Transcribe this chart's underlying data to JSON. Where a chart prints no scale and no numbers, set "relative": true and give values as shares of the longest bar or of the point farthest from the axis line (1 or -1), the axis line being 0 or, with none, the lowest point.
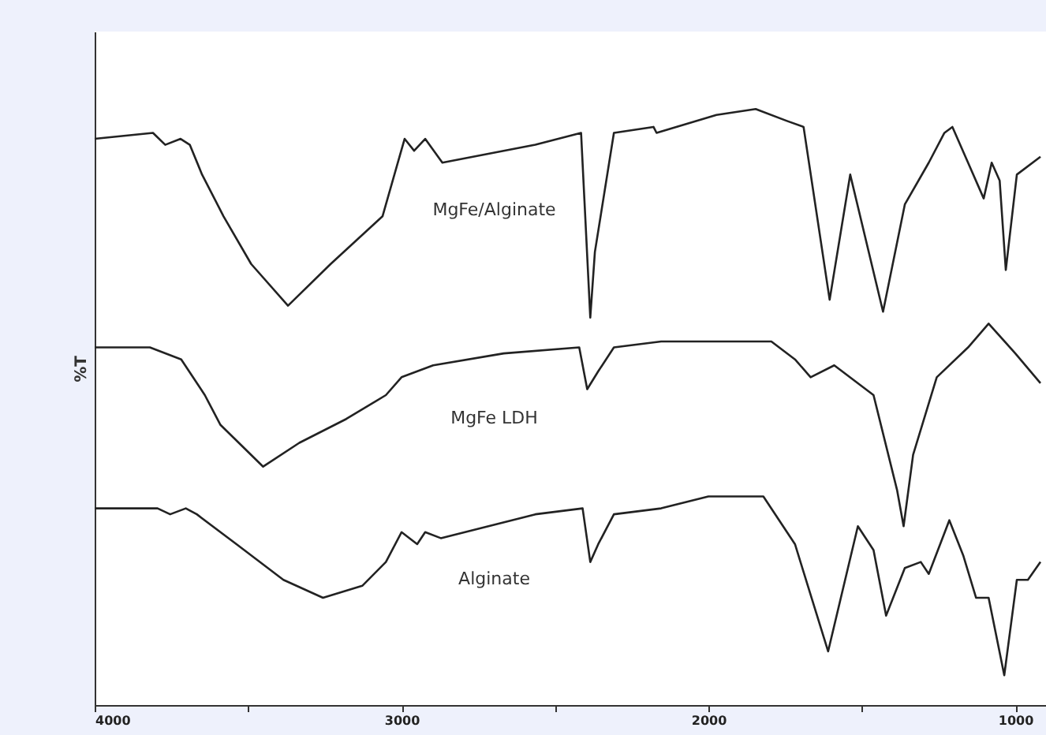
{
  "chart_data": {
    "type": "line",
    "ylabel": "%T",
    "relative": true,
    "xlim": [
      4000,
      900
    ],
    "xticks": [
      4000,
      {
        "value": 3500,
        "label": null
      },
      3000,
      {
        "value": 2500,
        "label": null
      },
      2000,
      {
        "value": 1500,
        "label": null
      },
      1000
    ],
    "grid": false,
    "marker": "none",
    "line_style": "solid",
    "series": [
      {
        "name": "MgFe/Alginate",
        "color": "#222222",
        "x": [
          4000,
          3810,
          3770,
          3720,
          3690,
          3650,
          3580,
          3490,
          3370,
          3231,
          3062,
          2990,
          2959,
          2923,
          2867,
          2564,
          2415,
          2385,
          2370,
          2308,
          2179,
          2169,
          1974,
          1846,
          1744,
          1690,
          1605,
          1538,
          1431,
          1360,
          1282,
          1231,
          1205,
          1154,
          1103,
          1077,
          1051,
          1031,
          995,
          918
        ],
        "values": [
          0.95,
          0.96,
          0.94,
          0.95,
          0.94,
          0.89,
          0.82,
          0.74,
          0.67,
          0.74,
          0.82,
          0.95,
          0.93,
          0.95,
          0.91,
          0.94,
          0.96,
          0.65,
          0.76,
          0.96,
          0.97,
          0.96,
          0.99,
          1.0,
          0.98,
          0.97,
          0.68,
          0.89,
          0.66,
          0.84,
          0.91,
          0.96,
          0.97,
          0.91,
          0.85,
          0.91,
          0.88,
          0.73,
          0.89,
          0.92
        ]
      },
      {
        "name": "MgFe LDH",
        "color": "#222222",
        "x": [
          4000,
          3820,
          3718,
          3641,
          3590,
          3451,
          3333,
          3180,
          3051,
          3000,
          2897,
          2667,
          2421,
          2395,
          2359,
          2308,
          2154,
          1949,
          1795,
          1718,
          1667,
          1590,
          1462,
          1385,
          1364,
          1333,
          1256,
          1154,
          1087,
          1000,
          918
        ],
        "values": [
          0.6,
          0.6,
          0.58,
          0.52,
          0.47,
          0.4,
          0.44,
          0.48,
          0.52,
          0.55,
          0.57,
          0.59,
          0.6,
          0.53,
          0.56,
          0.6,
          0.61,
          0.61,
          0.61,
          0.58,
          0.55,
          0.57,
          0.52,
          0.36,
          0.3,
          0.42,
          0.55,
          0.6,
          0.64,
          0.59,
          0.54
        ]
      },
      {
        "name": "Alginate",
        "color": "#222222",
        "x": [
          4000,
          3795,
          3754,
          3703,
          3667,
          3538,
          3385,
          3256,
          3128,
          3051,
          3000,
          2949,
          2923,
          2872,
          2564,
          2410,
          2385,
          2359,
          2308,
          2154,
          2000,
          1821,
          1718,
          1610,
          1513,
          1462,
          1421,
          1360,
          1308,
          1282,
          1215,
          1169,
          1128,
          1087,
          1036,
          995,
          959,
          918
        ],
        "values": [
          0.33,
          0.33,
          0.32,
          0.33,
          0.32,
          0.27,
          0.21,
          0.18,
          0.2,
          0.24,
          0.29,
          0.27,
          0.29,
          0.28,
          0.32,
          0.33,
          0.24,
          0.27,
          0.32,
          0.33,
          0.35,
          0.35,
          0.27,
          0.09,
          0.3,
          0.26,
          0.15,
          0.23,
          0.24,
          0.22,
          0.31,
          0.25,
          0.18,
          0.18,
          0.05,
          0.21,
          0.21,
          0.24
        ]
      }
    ]
  }
}
